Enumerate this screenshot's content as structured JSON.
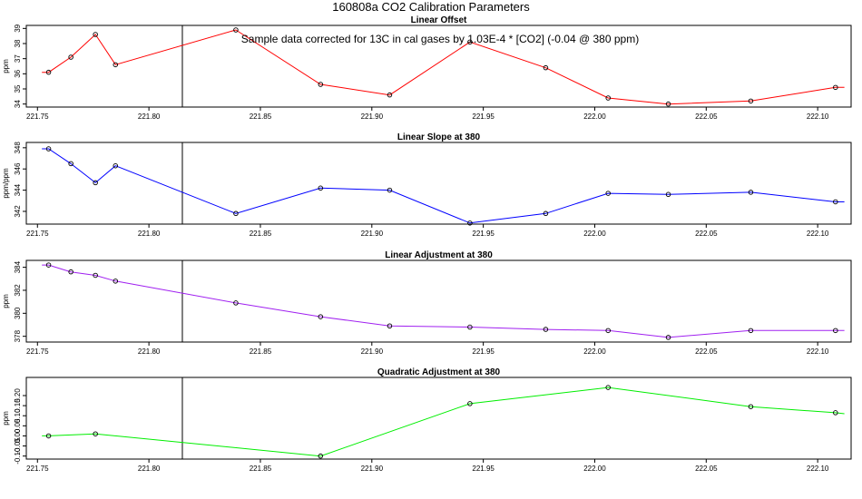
{
  "title": "160808a   CO2 Calibration Parameters",
  "annotation": "Sample data corrected for 13C in cal gases by 1.03E-4 * [CO2] (-0.04 @ 380 ppm)",
  "reference_line_x": 221.815,
  "chart_data": [
    {
      "type": "line",
      "title": "Linear Offset",
      "ylabel": "ppm",
      "xlim": [
        221.745,
        222.115
      ],
      "ylim": [
        33.8,
        39.2
      ],
      "xticks": [
        221.75,
        221.8,
        221.85,
        221.9,
        221.95,
        222.0,
        222.05,
        222.1
      ],
      "xtick_labels": [
        "221.75",
        "221.80",
        "221.85",
        "221.90",
        "221.95",
        "222.00",
        "222.05",
        "222.10"
      ],
      "yticks": [
        34,
        35,
        36,
        37,
        38,
        39
      ],
      "ytick_labels": [
        "34",
        "35",
        "36",
        "37",
        "38",
        "39"
      ],
      "color": "#ff0000",
      "line_start": [
        221.752,
        36.1
      ],
      "line_end": [
        222.112,
        35.1
      ],
      "x": [
        221.755,
        221.765,
        221.776,
        221.785,
        221.839,
        221.877,
        221.908,
        221.944,
        221.978,
        222.006,
        222.033,
        222.07,
        222.108
      ],
      "y": [
        36.1,
        37.1,
        38.6,
        36.6,
        38.9,
        35.3,
        34.6,
        38.1,
        36.4,
        34.4,
        34.0,
        34.2,
        35.1
      ]
    },
    {
      "type": "line",
      "title": "Linear Slope at 380",
      "ylabel": "ppm/ppm",
      "xlim": [
        221.745,
        222.115
      ],
      "ylim": [
        340.8,
        348.5
      ],
      "xticks": [
        221.75,
        221.8,
        221.85,
        221.9,
        221.95,
        222.0,
        222.05,
        222.1
      ],
      "xtick_labels": [
        "221.75",
        "221.80",
        "221.85",
        "221.90",
        "221.95",
        "222.00",
        "222.05",
        "222.10"
      ],
      "yticks": [
        342,
        344,
        346,
        348
      ],
      "ytick_labels": [
        "342",
        "344",
        "346",
        "348"
      ],
      "color": "#0000ff",
      "line_start": [
        221.752,
        347.9
      ],
      "line_end": [
        222.112,
        342.9
      ],
      "x": [
        221.755,
        221.765,
        221.776,
        221.785,
        221.839,
        221.877,
        221.908,
        221.944,
        221.978,
        222.006,
        222.033,
        222.07,
        222.108
      ],
      "y": [
        347.9,
        346.5,
        344.7,
        346.3,
        341.8,
        344.2,
        344.0,
        340.9,
        341.8,
        343.7,
        343.6,
        343.8,
        342.9
      ]
    },
    {
      "type": "line",
      "title": "Linear Adjustment at 380",
      "ylabel": "ppm",
      "xlim": [
        221.745,
        222.115
      ],
      "ylim": [
        377.5,
        384.6
      ],
      "xticks": [
        221.75,
        221.8,
        221.85,
        221.9,
        221.95,
        222.0,
        222.05,
        222.1
      ],
      "xtick_labels": [
        "221.75",
        "221.80",
        "221.85",
        "221.90",
        "221.95",
        "222.00",
        "222.05",
        "222.10"
      ],
      "yticks": [
        378,
        380,
        382,
        384
      ],
      "ytick_labels": [
        "378",
        "380",
        "382",
        "384"
      ],
      "color": "#a020f0",
      "line_start": [
        221.752,
        384.2
      ],
      "line_end": [
        222.112,
        378.5
      ],
      "x": [
        221.755,
        221.765,
        221.776,
        221.785,
        221.839,
        221.877,
        221.908,
        221.944,
        221.978,
        222.006,
        222.033,
        222.07,
        222.108
      ],
      "y": [
        384.2,
        383.6,
        383.3,
        382.8,
        380.9,
        379.7,
        378.9,
        378.8,
        378.6,
        378.5,
        377.9,
        378.5,
        378.5
      ]
    },
    {
      "type": "line",
      "title": "Quadratic Adjustment at 380",
      "ylabel": "ppm",
      "xlim": [
        221.745,
        222.115
      ],
      "ylim": [
        -0.115,
        0.29
      ],
      "xticks": [
        221.75,
        221.8,
        221.85,
        221.9,
        221.95,
        222.0,
        222.05,
        222.1
      ],
      "xtick_labels": [
        "221.75",
        "221.80",
        "221.85",
        "221.90",
        "221.95",
        "222.00",
        "222.05",
        "222.10"
      ],
      "yticks": [
        -0.1,
        -0.05,
        0.0,
        0.05,
        0.1,
        0.15,
        0.2
      ],
      "ytick_labels": [
        "-0.10",
        "-0.05",
        "0.00",
        "0.05",
        "0.10",
        "0.15",
        "0.20"
      ],
      "color": "#00ee00",
      "line_start": [
        221.752,
        0.0
      ],
      "line_end": [
        222.112,
        0.11
      ],
      "x": [
        221.755,
        221.776,
        221.877,
        221.944,
        222.006,
        222.07,
        222.108
      ],
      "y": [
        0.0,
        0.01,
        -0.1,
        0.16,
        0.24,
        0.145,
        0.115
      ]
    }
  ]
}
